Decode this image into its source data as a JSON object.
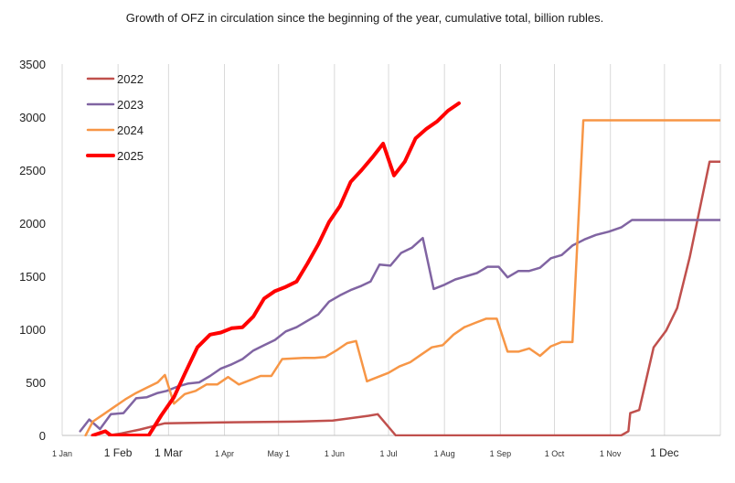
{
  "chart_data": {
    "type": "line",
    "title": "Growth of OFZ in circulation since the beginning of the year, cumulative total, billion rubles.",
    "xlabel": "",
    "ylabel": "",
    "ylim": [
      0,
      3500
    ],
    "xlim": [
      0,
      365
    ],
    "yticks": [
      0,
      500,
      1000,
      1500,
      2000,
      2500,
      3000,
      3500
    ],
    "xticks": [
      {
        "day": 0,
        "label": "1 Jan",
        "size": "small"
      },
      {
        "day": 31,
        "label": "1 Feb",
        "size": "big"
      },
      {
        "day": 59,
        "label": "1 Mar",
        "size": "big"
      },
      {
        "day": 90,
        "label": "1 Apr",
        "size": "small"
      },
      {
        "day": 120,
        "label": "May 1",
        "size": "small"
      },
      {
        "day": 151,
        "label": "1 Jun",
        "size": "small"
      },
      {
        "day": 181,
        "label": "1 Jul",
        "size": "small"
      },
      {
        "day": 212,
        "label": "1 Aug",
        "size": "small"
      },
      {
        "day": 243,
        "label": "1 Sep",
        "size": "small"
      },
      {
        "day": 273,
        "label": "1 Oct",
        "size": "small"
      },
      {
        "day": 304,
        "label": "1 Nov",
        "size": "small"
      },
      {
        "day": 334,
        "label": "1 Dec",
        "size": "big"
      }
    ],
    "grid": "vertical",
    "legend": "top-left",
    "series": [
      {
        "name": "2022",
        "color": "#c0504d",
        "points": [
          [
            26,
            0
          ],
          [
            33,
            20
          ],
          [
            43,
            55
          ],
          [
            57,
            115
          ],
          [
            89,
            122
          ],
          [
            130,
            130
          ],
          [
            150,
            140
          ],
          [
            170,
            185
          ],
          [
            175,
            200
          ],
          [
            185,
            0
          ],
          [
            310,
            0
          ],
          [
            314,
            40
          ],
          [
            315,
            210
          ],
          [
            320,
            240
          ],
          [
            328,
            830
          ],
          [
            335,
            990
          ],
          [
            341,
            1200
          ],
          [
            348,
            1680
          ],
          [
            359,
            2580
          ],
          [
            370,
            2580
          ]
        ]
      },
      {
        "name": "2023",
        "color": "#8064a2",
        "points": [
          [
            10,
            40
          ],
          [
            15,
            150
          ],
          [
            21,
            60
          ],
          [
            27,
            200
          ],
          [
            34,
            210
          ],
          [
            41,
            350
          ],
          [
            47,
            360
          ],
          [
            53,
            400
          ],
          [
            58,
            420
          ],
          [
            64,
            460
          ],
          [
            70,
            490
          ],
          [
            76,
            500
          ],
          [
            82,
            560
          ],
          [
            88,
            630
          ],
          [
            94,
            670
          ],
          [
            100,
            720
          ],
          [
            106,
            800
          ],
          [
            112,
            850
          ],
          [
            118,
            900
          ],
          [
            124,
            980
          ],
          [
            130,
            1020
          ],
          [
            136,
            1080
          ],
          [
            142,
            1140
          ],
          [
            148,
            1260
          ],
          [
            154,
            1320
          ],
          [
            160,
            1370
          ],
          [
            166,
            1410
          ],
          [
            171,
            1450
          ],
          [
            176,
            1610
          ],
          [
            182,
            1600
          ],
          [
            188,
            1720
          ],
          [
            194,
            1770
          ],
          [
            200,
            1860
          ],
          [
            206,
            1380
          ],
          [
            212,
            1420
          ],
          [
            218,
            1470
          ],
          [
            224,
            1500
          ],
          [
            230,
            1530
          ],
          [
            236,
            1590
          ],
          [
            242,
            1590
          ],
          [
            247,
            1490
          ],
          [
            253,
            1550
          ],
          [
            259,
            1550
          ],
          [
            265,
            1580
          ],
          [
            271,
            1670
          ],
          [
            277,
            1700
          ],
          [
            283,
            1790
          ],
          [
            290,
            1850
          ],
          [
            296,
            1890
          ],
          [
            303,
            1920
          ],
          [
            310,
            1960
          ],
          [
            316,
            2030
          ],
          [
            370,
            2030
          ]
        ]
      },
      {
        "name": "2024",
        "color": "#f79646",
        "points": [
          [
            13,
            0
          ],
          [
            17,
            130
          ],
          [
            23,
            200
          ],
          [
            29,
            270
          ],
          [
            35,
            340
          ],
          [
            41,
            400
          ],
          [
            47,
            450
          ],
          [
            53,
            500
          ],
          [
            57,
            570
          ],
          [
            62,
            300
          ],
          [
            68,
            390
          ],
          [
            74,
            420
          ],
          [
            80,
            480
          ],
          [
            86,
            480
          ],
          [
            92,
            550
          ],
          [
            98,
            480
          ],
          [
            104,
            520
          ],
          [
            110,
            560
          ],
          [
            116,
            560
          ],
          [
            122,
            720
          ],
          [
            128,
            725
          ],
          [
            134,
            730
          ],
          [
            140,
            730
          ],
          [
            146,
            740
          ],
          [
            152,
            800
          ],
          [
            158,
            870
          ],
          [
            163,
            890
          ],
          [
            169,
            510
          ],
          [
            175,
            550
          ],
          [
            181,
            590
          ],
          [
            187,
            650
          ],
          [
            193,
            690
          ],
          [
            199,
            760
          ],
          [
            205,
            830
          ],
          [
            211,
            850
          ],
          [
            217,
            950
          ],
          [
            223,
            1020
          ],
          [
            229,
            1060
          ],
          [
            235,
            1100
          ],
          [
            241,
            1100
          ],
          [
            247,
            790
          ],
          [
            253,
            790
          ],
          [
            259,
            820
          ],
          [
            265,
            750
          ],
          [
            271,
            840
          ],
          [
            277,
            880
          ],
          [
            283,
            880
          ],
          [
            289,
            2970
          ],
          [
            295,
            2970
          ],
          [
            370,
            2970
          ]
        ]
      },
      {
        "name": "2025",
        "color": "#ff0000",
        "points": [
          [
            17,
            0
          ],
          [
            24,
            40
          ],
          [
            27,
            0
          ],
          [
            48,
            0
          ],
          [
            55,
            190
          ],
          [
            62,
            360
          ],
          [
            68,
            580
          ],
          [
            75,
            830
          ],
          [
            82,
            950
          ],
          [
            88,
            970
          ],
          [
            94,
            1010
          ],
          [
            100,
            1020
          ],
          [
            106,
            1120
          ],
          [
            112,
            1290
          ],
          [
            118,
            1360
          ],
          [
            124,
            1400
          ],
          [
            130,
            1450
          ],
          [
            136,
            1620
          ],
          [
            142,
            1800
          ],
          [
            148,
            2010
          ],
          [
            154,
            2160
          ],
          [
            160,
            2390
          ],
          [
            166,
            2500
          ],
          [
            172,
            2620
          ],
          [
            178,
            2750
          ],
          [
            184,
            2450
          ],
          [
            190,
            2580
          ],
          [
            196,
            2800
          ],
          [
            202,
            2890
          ],
          [
            208,
            2960
          ],
          [
            214,
            3060
          ],
          [
            220,
            3130
          ]
        ]
      }
    ]
  }
}
